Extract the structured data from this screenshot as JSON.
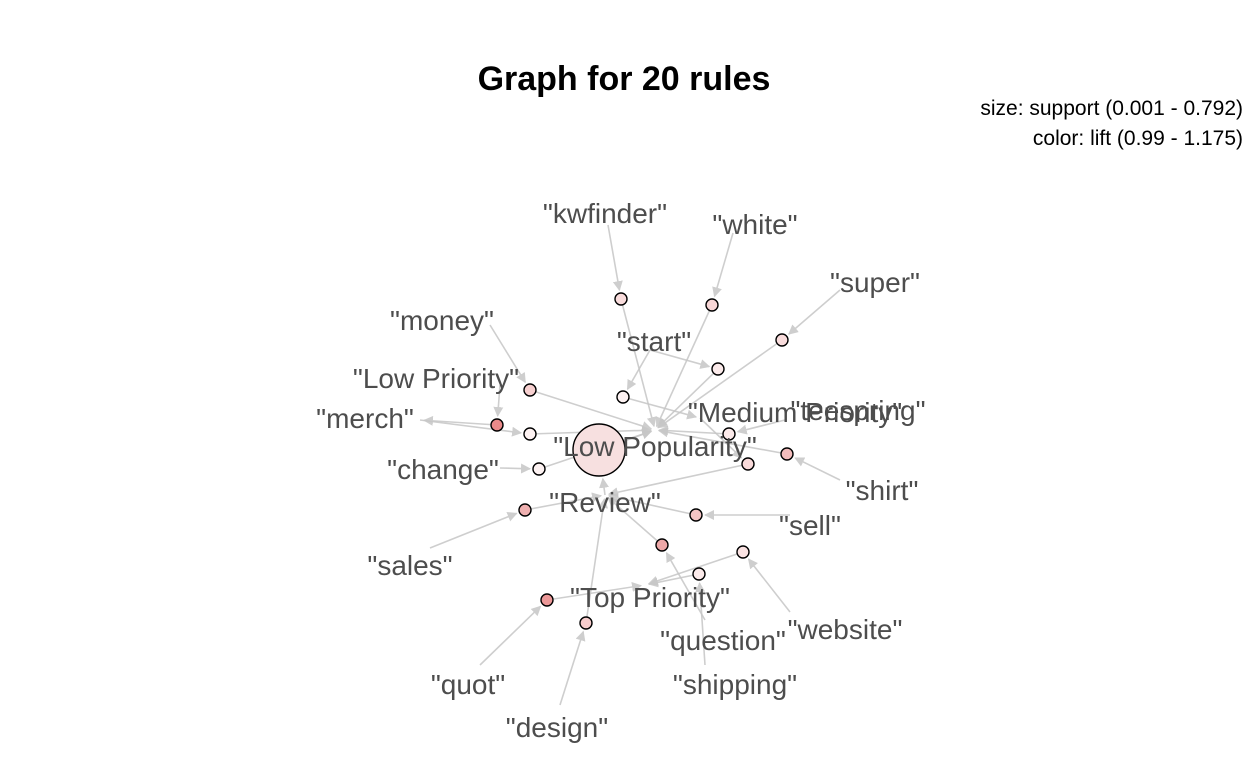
{
  "title": "Graph for 20 rules",
  "legend": {
    "size": "size: support (0.001 - 0.792)",
    "color": "color: lift (0.99 - 1.175)"
  },
  "items": [
    {
      "id": "kwfinder",
      "label": "\"kwfinder\""
    },
    {
      "id": "white",
      "label": "\"white\""
    },
    {
      "id": "super",
      "label": "\"super\""
    },
    {
      "id": "money",
      "label": "\"money\""
    },
    {
      "id": "start",
      "label": "\"start\""
    },
    {
      "id": "lowpriority",
      "label": "\"Low Priority\""
    },
    {
      "id": "merch",
      "label": "\"merch\""
    },
    {
      "id": "mediumpriority",
      "label": "\"Medium Priority\""
    },
    {
      "id": "teespring",
      "label": "\"teespring\""
    },
    {
      "id": "lowpopularity",
      "label": "\"Low Popularity\""
    },
    {
      "id": "change",
      "label": "\"change\""
    },
    {
      "id": "shirt",
      "label": "\"shirt\""
    },
    {
      "id": "review",
      "label": "\"Review\""
    },
    {
      "id": "sell",
      "label": "\"sell\""
    },
    {
      "id": "sales",
      "label": "\"sales\""
    },
    {
      "id": "toppriority",
      "label": "\"Top Priority\""
    },
    {
      "id": "website",
      "label": "\"website\""
    },
    {
      "id": "question",
      "label": "\"question\""
    },
    {
      "id": "quot",
      "label": "\"quot\""
    },
    {
      "id": "shipping",
      "label": "\"shipping\""
    },
    {
      "id": "design",
      "label": "\"design\""
    }
  ],
  "rules": [
    {
      "id": "r1",
      "support": 0.001,
      "lift": 1.05,
      "color": "#f9dcdc",
      "lhs": [
        "kwfinder"
      ],
      "rhs": "lowpopularity"
    },
    {
      "id": "r2",
      "support": 0.001,
      "lift": 1.07,
      "color": "#f8d6d6",
      "lhs": [
        "white"
      ],
      "rhs": "lowpopularity"
    },
    {
      "id": "r3",
      "support": 0.001,
      "lift": 1.05,
      "color": "#f9dcdc",
      "lhs": [
        "super"
      ],
      "rhs": "lowpopularity"
    },
    {
      "id": "r4",
      "support": 0.001,
      "lift": 1.08,
      "color": "#f7d0d0",
      "lhs": [
        "money"
      ],
      "rhs": "lowpopularity"
    },
    {
      "id": "r5",
      "support": 0.001,
      "lift": 0.99,
      "color": "#fdf2f2",
      "lhs": [
        "start"
      ],
      "rhs": "mediumpriority"
    },
    {
      "id": "r6",
      "support": 0.001,
      "lift": 1.0,
      "color": "#fbeaea",
      "lhs": [
        "start"
      ],
      "rhs": "lowpopularity"
    },
    {
      "id": "r7",
      "support": 0.001,
      "lift": 1.175,
      "color": "#ea8a8a",
      "lhs": [
        "lowpriority"
      ],
      "rhs": "merch"
    },
    {
      "id": "r8",
      "support": 0.001,
      "lift": 0.99,
      "color": "#fdf2f2",
      "lhs": [
        "merch"
      ],
      "rhs": "lowpopularity"
    },
    {
      "id": "r9",
      "support": 0.792,
      "lift": 1.02,
      "color": "#f7e0e0",
      "lhs": [
        "review"
      ],
      "rhs": "lowpopularity"
    },
    {
      "id": "r10",
      "support": 0.001,
      "lift": 1.0,
      "color": "#fbeaea",
      "lhs": [
        "teespring"
      ],
      "rhs": "lowpopularity"
    },
    {
      "id": "r11",
      "support": 0.001,
      "lift": 1.12,
      "color": "#f3bcbc",
      "lhs": [
        "shirt"
      ],
      "rhs": "lowpopularity"
    },
    {
      "id": "r12",
      "support": 0.001,
      "lift": 0.99,
      "color": "#fdf2f2",
      "lhs": [
        "change"
      ],
      "rhs": "lowpopularity"
    },
    {
      "id": "r13",
      "support": 0.001,
      "lift": 1.13,
      "color": "#efb0b0",
      "lhs": [
        "sales"
      ],
      "rhs": "review"
    },
    {
      "id": "r14",
      "support": 0.001,
      "lift": 1.1,
      "color": "#f5c4c4",
      "lhs": [
        "sell"
      ],
      "rhs": "review"
    },
    {
      "id": "r15",
      "support": 0.001,
      "lift": 1.14,
      "color": "#eea8a8",
      "lhs": [
        "question"
      ],
      "rhs": "review"
    },
    {
      "id": "r16",
      "support": 0.001,
      "lift": 1.02,
      "color": "#fae2e2",
      "lhs": [
        "website"
      ],
      "rhs": "toppriority"
    },
    {
      "id": "r17",
      "support": 0.001,
      "lift": 1.16,
      "color": "#ec9898",
      "lhs": [
        "quot"
      ],
      "rhs": "toppriority"
    },
    {
      "id": "r18",
      "support": 0.001,
      "lift": 1.07,
      "color": "#f6cccc",
      "lhs": [
        "design"
      ],
      "rhs": "review"
    },
    {
      "id": "r19",
      "support": 0.001,
      "lift": 1.0,
      "color": "#fbeaea",
      "lhs": [
        "shipping"
      ],
      "rhs": "toppriority"
    },
    {
      "id": "r20",
      "support": 0.001,
      "lift": 1.04,
      "color": "#f9dada",
      "lhs": [
        "mediumpriority"
      ],
      "rhs": "review"
    }
  ]
}
